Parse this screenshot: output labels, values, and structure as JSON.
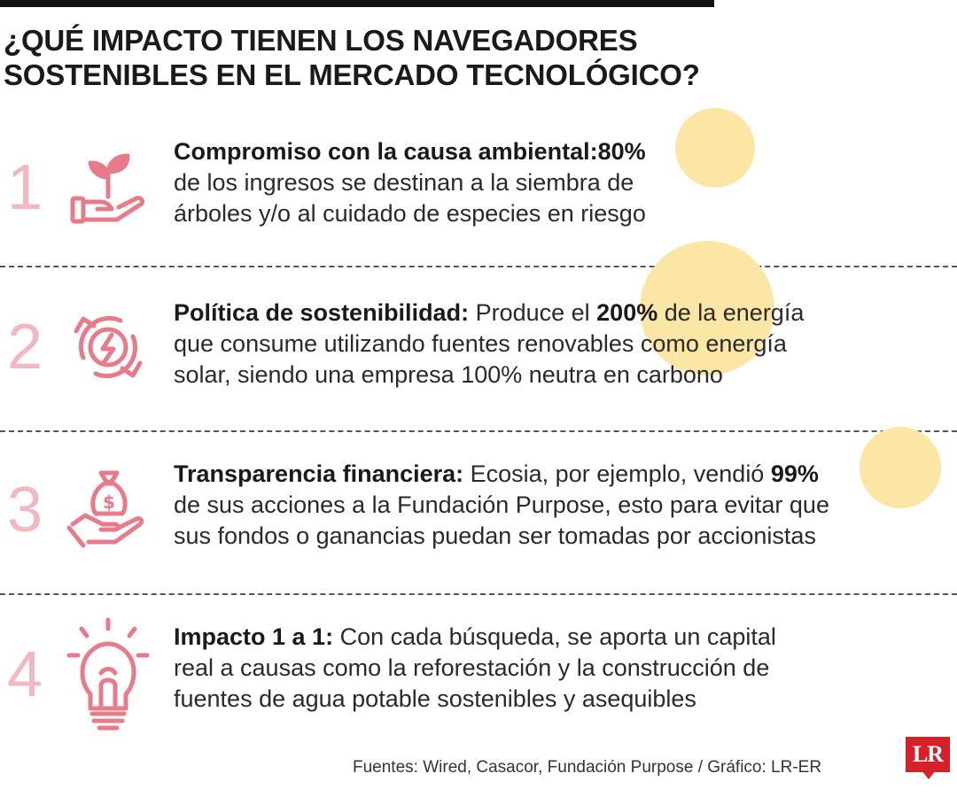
{
  "title": {
    "line1": "¿Qué impacto tienen los navegadores",
    "line2": "sostenibles en el mercado tecnológico?"
  },
  "colors": {
    "accent": "#f1b8c0",
    "icon": "#e87a8a",
    "highlight": "#fbe6a6",
    "logo": "#d6202a"
  },
  "items": [
    {
      "number": "1",
      "icon": "plant-in-hand-icon",
      "heading": "Compromiso con la causa ambiental:",
      "pre": "",
      "stat": "80%",
      "post": "",
      "line2": "de los ingresos se destinan a la siembra de",
      "line3": "árboles y/o al cuidado de especies en riesgo"
    },
    {
      "number": "2",
      "icon": "renewable-energy-icon",
      "heading": "Política de sostenibilidad:",
      "pre": " Produce el ",
      "stat": "200%",
      "post": " de la energía",
      "line2": "que consume utilizando fuentes renovables como energía",
      "line3": "solar, siendo una empresa 100% neutra en carbono"
    },
    {
      "number": "3",
      "icon": "money-bag-hand-icon",
      "heading": "Transparencia financiera:",
      "pre": " Ecosia, por ejemplo, vendió ",
      "stat": "99%",
      "post": "",
      "line2": "de sus acciones a la Fundación Purpose, esto para evitar que",
      "line3": "sus fondos o ganancias puedan ser tomadas por accionistas"
    },
    {
      "number": "4",
      "icon": "light-bulb-icon",
      "heading": "Impacto 1 a 1:",
      "pre": " Con cada búsqueda, se aporta un capital",
      "stat": "",
      "post": "",
      "line2": "real a causas como la reforestación y  la construcción de",
      "line3": "fuentes de agua potable sostenibles y asequibles"
    }
  ],
  "footer": "Fuentes: Wired, Casacor, Fundación Purpose / Gráfico: LR-ER",
  "logo": "LR"
}
